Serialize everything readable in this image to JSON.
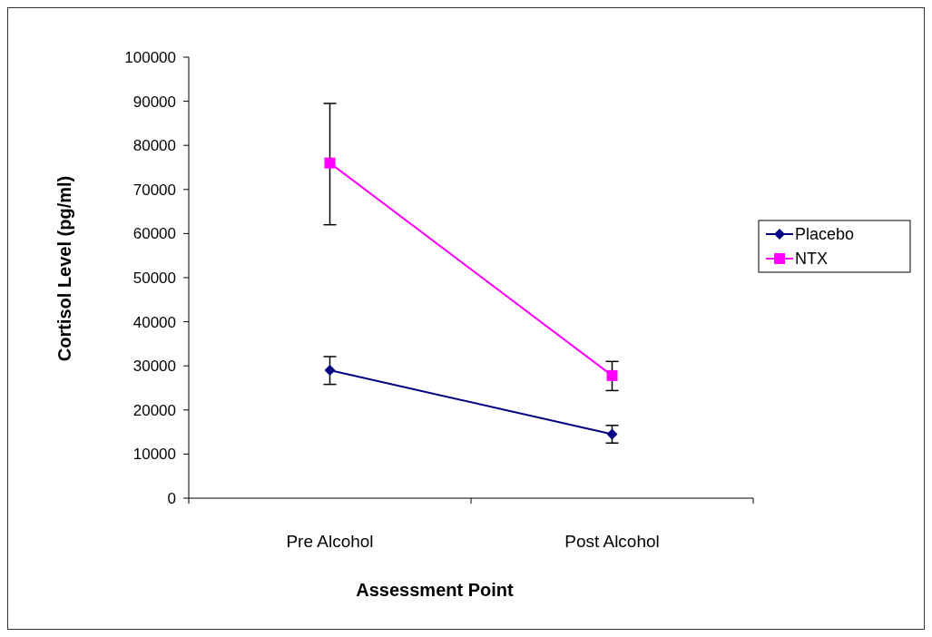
{
  "chart_data": {
    "type": "line",
    "xlabel": "Assessment Point",
    "ylabel": "Cortisol Level (pg/ml)",
    "categories": [
      "Pre Alcohol",
      "Post Alcohol"
    ],
    "ylim": [
      0,
      100000
    ],
    "yticks": [
      0,
      10000,
      20000,
      30000,
      40000,
      50000,
      60000,
      70000,
      80000,
      90000,
      100000
    ],
    "grid": false,
    "legend": "right",
    "series": [
      {
        "name": "Placebo",
        "color": "#000080",
        "marker": "diamond",
        "values": [
          29000,
          14500
        ],
        "errors": [
          [
            25800,
            32100
          ],
          [
            12500,
            16500
          ]
        ]
      },
      {
        "name": "NTX",
        "color": "#ff00ff",
        "marker": "square",
        "values": [
          76000,
          27800
        ],
        "errors": [
          [
            62000,
            89500
          ],
          [
            24400,
            31000
          ]
        ]
      }
    ]
  }
}
